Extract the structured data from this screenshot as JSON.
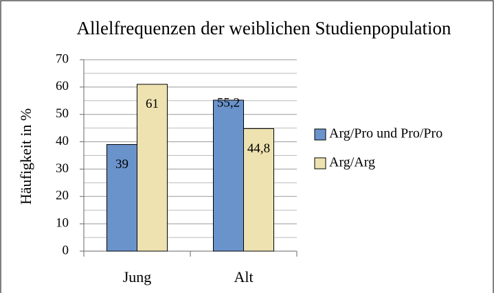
{
  "chart_data": {
    "type": "bar",
    "title": "Allelfrequenzen der weiblichen Studienpopulation",
    "y_label": "Häufigkeit in %",
    "categories": [
      "Jung",
      "Alt"
    ],
    "series": [
      {
        "name": "Arg/Pro und Pro/Pro",
        "color": "#6a93cc",
        "values": [
          39,
          55.2
        ],
        "value_labels": [
          "39",
          "55,2"
        ]
      },
      {
        "name": "Arg/Arg",
        "color": "#ede2b0",
        "values": [
          61,
          44.8
        ],
        "value_labels": [
          "61",
          "44,8"
        ]
      }
    ],
    "ylim": [
      0,
      70
    ],
    "yticks": [
      0,
      10,
      20,
      30,
      40,
      50,
      60,
      70
    ],
    "yminor_ticks": [
      5,
      15,
      25,
      35,
      45,
      55,
      65
    ],
    "grid": true,
    "legend": "right"
  }
}
